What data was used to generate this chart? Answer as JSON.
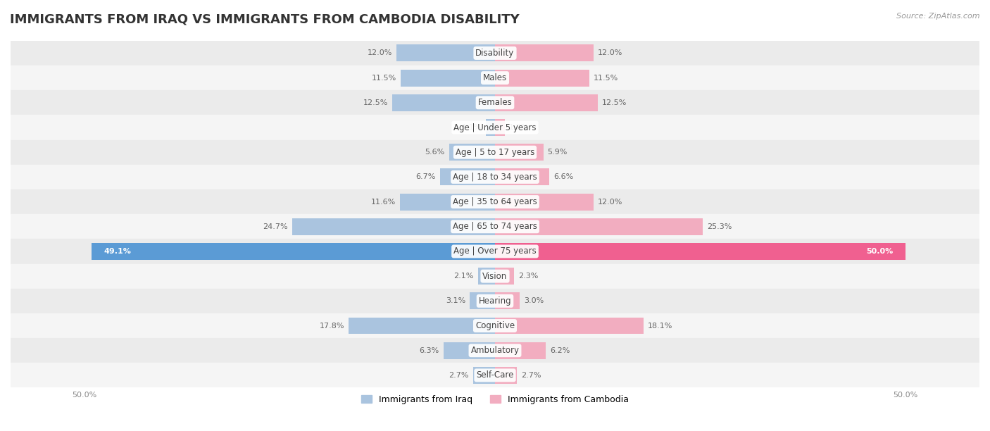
{
  "title": "IMMIGRANTS FROM IRAQ VS IMMIGRANTS FROM CAMBODIA DISABILITY",
  "source": "Source: ZipAtlas.com",
  "categories": [
    "Disability",
    "Males",
    "Females",
    "Age | Under 5 years",
    "Age | 5 to 17 years",
    "Age | 18 to 34 years",
    "Age | 35 to 64 years",
    "Age | 65 to 74 years",
    "Age | Over 75 years",
    "Vision",
    "Hearing",
    "Cognitive",
    "Ambulatory",
    "Self-Care"
  ],
  "iraq_values": [
    12.0,
    11.5,
    12.5,
    1.1,
    5.6,
    6.7,
    11.6,
    24.7,
    49.1,
    2.1,
    3.1,
    17.8,
    6.3,
    2.7
  ],
  "cambodia_values": [
    12.0,
    11.5,
    12.5,
    1.2,
    5.9,
    6.6,
    12.0,
    25.3,
    50.0,
    2.3,
    3.0,
    18.1,
    6.2,
    2.7
  ],
  "iraq_color": "#aac4df",
  "cambodia_color": "#f2adc0",
  "iraq_highlight_color": "#5b9bd5",
  "cambodia_highlight_color": "#f06090",
  "highlight_row": 8,
  "bar_height": 0.68,
  "row_bg_even": "#ebebeb",
  "row_bg_odd": "#f5f5f5",
  "label_iraq": "Immigrants from Iraq",
  "label_cambodia": "Immigrants from Cambodia",
  "max_scale": 50.0,
  "title_fontsize": 13,
  "label_fontsize": 8.5,
  "value_fontsize": 8.0
}
